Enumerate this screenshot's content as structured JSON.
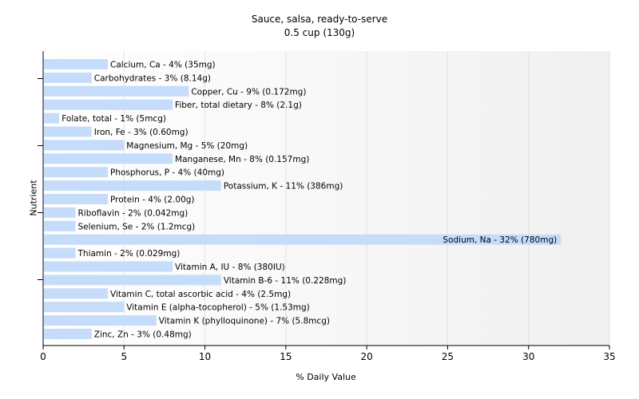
{
  "chart_data": {
    "type": "bar",
    "orientation": "horizontal",
    "title": "Sauce, salsa, ready-to-serve",
    "subtitle": "0.5 cup (130g)",
    "xlabel": "% Daily Value",
    "ylabel": "Nutrient",
    "xlim": [
      0,
      35
    ],
    "xticks": [
      0,
      5,
      10,
      15,
      20,
      25,
      30,
      35
    ],
    "grid": true,
    "bar_color": "#c6dcfb",
    "categories": [
      "Calcium, Ca",
      "Carbohydrates",
      "Copper, Cu",
      "Fiber, total dietary",
      "Folate, total",
      "Iron, Fe",
      "Magnesium, Mg",
      "Manganese, Mn",
      "Phosphorus, P",
      "Potassium, K",
      "Protein",
      "Riboflavin",
      "Selenium, Se",
      "Sodium, Na",
      "Thiamin",
      "Vitamin A, IU",
      "Vitamin B-6",
      "Vitamin C, total ascorbic acid",
      "Vitamin E (alpha-tocopherol)",
      "Vitamin K (phylloquinone)",
      "Zinc, Zn"
    ],
    "values": [
      4,
      3,
      9,
      8,
      1,
      3,
      5,
      8,
      4,
      11,
      4,
      2,
      2,
      32,
      2,
      8,
      11,
      4,
      5,
      7,
      3
    ],
    "data_labels": [
      "Calcium, Ca - 4% (35mg)",
      "Carbohydrates - 3% (8.14g)",
      "Copper, Cu - 9% (0.172mg)",
      "Fiber, total dietary - 8% (2.1g)",
      "Folate, total - 1% (5mcg)",
      "Iron, Fe - 3% (0.60mg)",
      "Magnesium, Mg - 5% (20mg)",
      "Manganese, Mn - 8% (0.157mg)",
      "Phosphorus, P - 4% (40mg)",
      "Potassium, K - 11% (386mg)",
      "Protein - 4% (2.00g)",
      "Riboflavin - 2% (0.042mg)",
      "Selenium, Se - 2% (1.2mcg)",
      "Sodium, Na - 32% (780mg)",
      "Thiamin - 2% (0.029mg)",
      "Vitamin A, IU - 8% (380IU)",
      "Vitamin B-6 - 11% (0.228mg)",
      "Vitamin C, total ascorbic acid - 4% (2.5mg)",
      "Vitamin E (alpha-tocopherol) - 5% (1.53mg)",
      "Vitamin K (phylloquinone) - 7% (5.8mcg)",
      "Zinc, Zn - 3% (0.48mg)"
    ]
  }
}
